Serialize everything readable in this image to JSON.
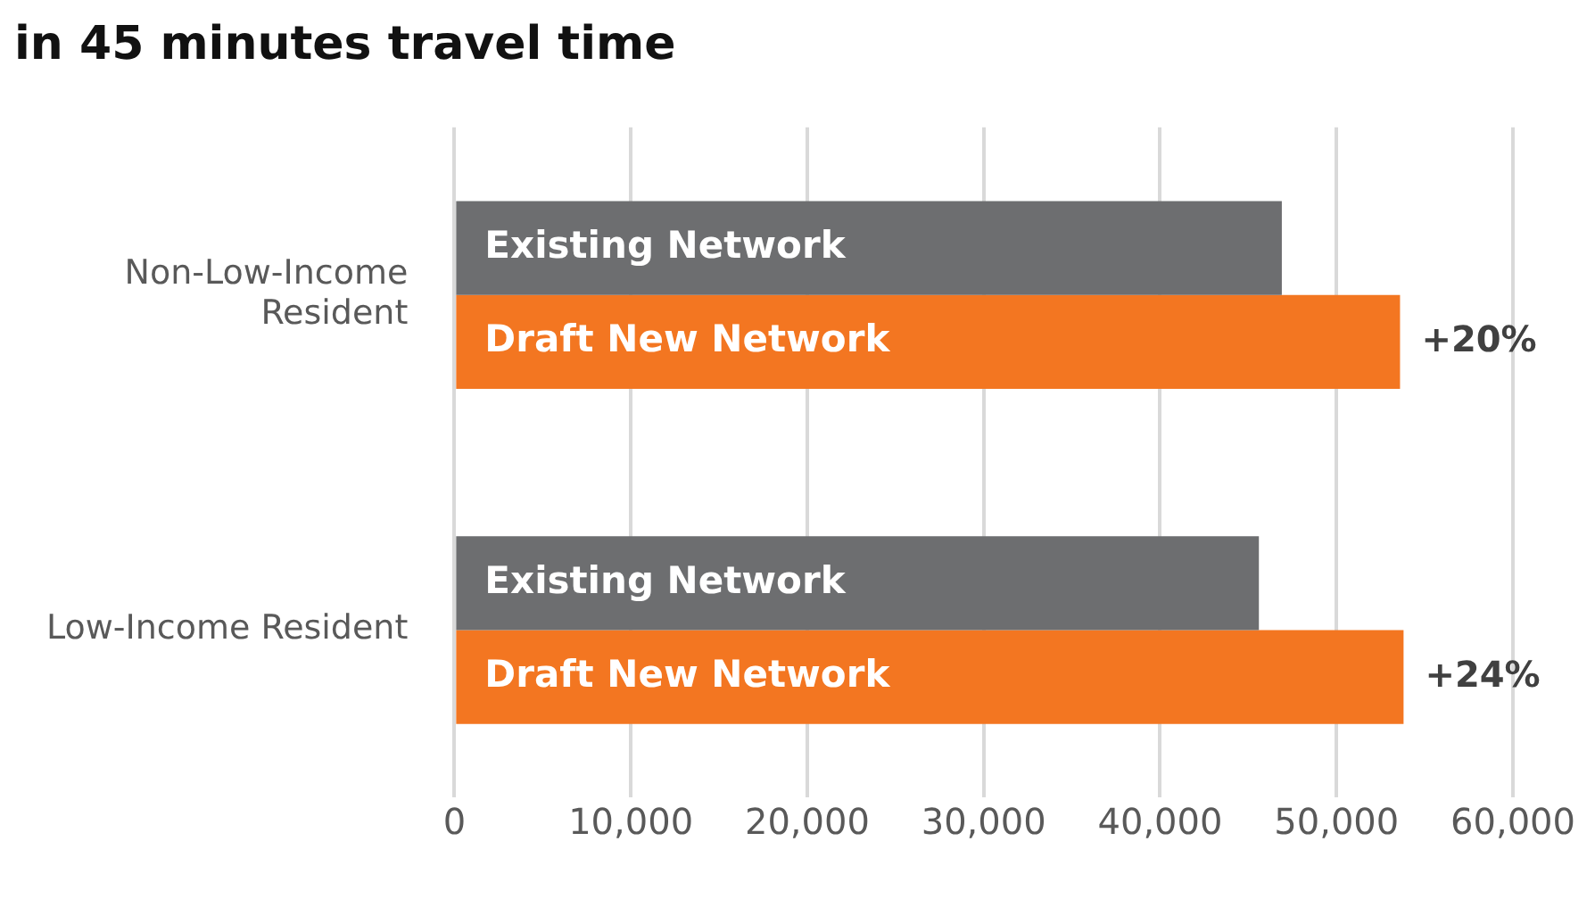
{
  "chart_data": {
    "type": "bar",
    "orientation": "horizontal",
    "title": "in 45 minutes travel time",
    "categories": [
      "Non-Low-Income Resident",
      "Low-Income Resident"
    ],
    "series": [
      {
        "name": "Existing Network",
        "color": "#6d6e70",
        "values": [
          46900,
          45600
        ]
      },
      {
        "name": "Draft New Network",
        "color": "#f37621",
        "values": [
          53600,
          53800
        ]
      }
    ],
    "annotations": [
      {
        "text": "+20%",
        "x": 53600,
        "y": "Non-Low-Income Resident"
      },
      {
        "text": "+24%",
        "x": 53800,
        "y": "Low-Income Resident"
      }
    ],
    "xlim": [
      0,
      60000
    ],
    "xticks": [
      {
        "value": 0,
        "label": "0"
      },
      {
        "value": 10000,
        "label": "10,000"
      },
      {
        "value": 20000,
        "label": "20,000"
      },
      {
        "value": 30000,
        "label": "30,000"
      },
      {
        "value": 40000,
        "label": "40,000"
      },
      {
        "value": 50000,
        "label": "50,000"
      },
      {
        "value": 60000,
        "label": "60,000"
      }
    ],
    "grid": "x",
    "legend": false
  }
}
